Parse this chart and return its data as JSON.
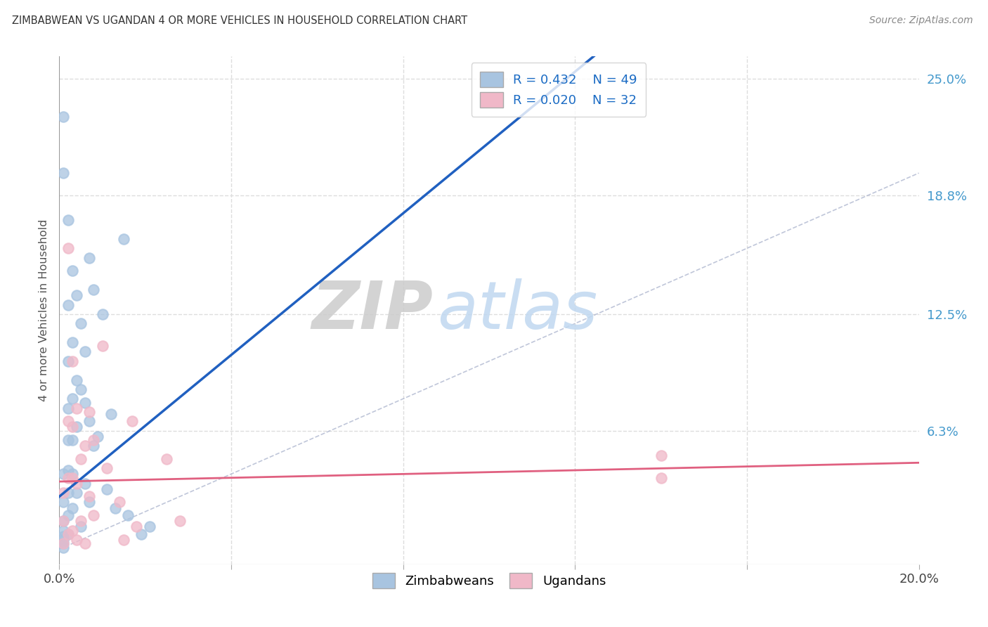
{
  "title": "ZIMBABWEAN VS UGANDAN 4 OR MORE VEHICLES IN HOUSEHOLD CORRELATION CHART",
  "source": "Source: ZipAtlas.com",
  "ylabel": "4 or more Vehicles in Household",
  "xlim": [
    0.0,
    0.2
  ],
  "ylim": [
    -0.008,
    0.262
  ],
  "background_color": "#ffffff",
  "grid_color": "#dddddd",
  "legend_r1": "R = 0.432",
  "legend_n1": "N = 49",
  "legend_r2": "R = 0.020",
  "legend_n2": "N = 32",
  "zim_color": "#a8c4e0",
  "uga_color": "#f0b8c8",
  "zim_line_color": "#2060c0",
  "uga_line_color": "#e06080",
  "diag_line_color": "#b0b8d0",
  "zim_line_x0": 0.0,
  "zim_line_y0": 0.028,
  "zim_line_x1": 0.085,
  "zim_line_y1": 0.188,
  "uga_line_x0": 0.0,
  "uga_line_y0": 0.036,
  "uga_line_x1": 0.2,
  "uga_line_y1": 0.046,
  "diag_line_x0": 0.0,
  "diag_line_y0": 0.0,
  "diag_line_x1": 0.2,
  "diag_line_y1": 0.2,
  "zim_x": [
    0.001,
    0.001,
    0.001,
    0.001,
    0.001,
    0.001,
    0.001,
    0.001,
    0.001,
    0.001,
    0.002,
    0.002,
    0.002,
    0.002,
    0.002,
    0.002,
    0.002,
    0.002,
    0.002,
    0.003,
    0.003,
    0.003,
    0.003,
    0.003,
    0.003,
    0.004,
    0.004,
    0.004,
    0.004,
    0.005,
    0.005,
    0.005,
    0.006,
    0.006,
    0.006,
    0.007,
    0.007,
    0.007,
    0.008,
    0.008,
    0.009,
    0.01,
    0.011,
    0.012,
    0.013,
    0.015,
    0.016,
    0.019,
    0.021
  ],
  "zim_y": [
    0.23,
    0.2,
    0.04,
    0.025,
    0.015,
    0.01,
    0.007,
    0.005,
    0.003,
    0.001,
    0.175,
    0.13,
    0.1,
    0.075,
    0.058,
    0.042,
    0.03,
    0.018,
    0.008,
    0.148,
    0.11,
    0.08,
    0.058,
    0.04,
    0.022,
    0.135,
    0.09,
    0.065,
    0.03,
    0.12,
    0.085,
    0.012,
    0.105,
    0.078,
    0.035,
    0.155,
    0.068,
    0.025,
    0.138,
    0.055,
    0.06,
    0.125,
    0.032,
    0.072,
    0.022,
    0.165,
    0.018,
    0.008,
    0.012
  ],
  "uga_x": [
    0.001,
    0.001,
    0.001,
    0.002,
    0.002,
    0.002,
    0.002,
    0.003,
    0.003,
    0.003,
    0.003,
    0.004,
    0.004,
    0.004,
    0.005,
    0.005,
    0.006,
    0.006,
    0.007,
    0.007,
    0.008,
    0.008,
    0.01,
    0.011,
    0.014,
    0.015,
    0.017,
    0.018,
    0.025,
    0.028,
    0.14,
    0.14
  ],
  "uga_y": [
    0.03,
    0.015,
    0.003,
    0.16,
    0.068,
    0.038,
    0.008,
    0.1,
    0.065,
    0.038,
    0.01,
    0.075,
    0.035,
    0.005,
    0.048,
    0.015,
    0.055,
    0.003,
    0.073,
    0.028,
    0.058,
    0.018,
    0.108,
    0.043,
    0.025,
    0.005,
    0.068,
    0.012,
    0.048,
    0.015,
    0.05,
    0.038
  ]
}
